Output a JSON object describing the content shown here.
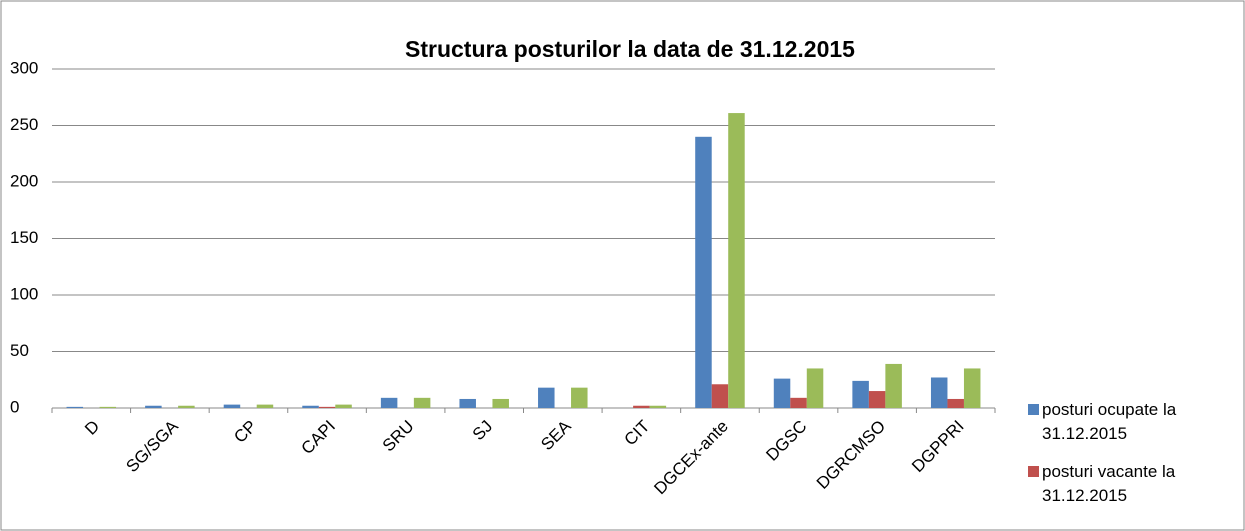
{
  "chart_data": {
    "type": "bar",
    "title": "Structura posturilor la data de 31.12.2015",
    "categories": [
      "D",
      "SG/SGA",
      "CP",
      "CAPI",
      "SRU",
      "SJ",
      "SEA",
      "CIT",
      "DGCEx-ante",
      "DGSC",
      "DGRCMSO",
      "DGPPRI"
    ],
    "series": [
      {
        "name": "posturi ocupate la 31.12.2015",
        "color": "#4f81bd",
        "values": [
          1,
          2,
          3,
          2,
          9,
          8,
          18,
          0,
          240,
          26,
          24,
          27
        ]
      },
      {
        "name": "posturi vacante la 31.12.2015",
        "color": "#c0504d",
        "values": [
          0,
          0,
          0,
          1,
          0,
          0,
          0,
          2,
          21,
          9,
          15,
          8
        ]
      },
      {
        "color": "#9bbb59",
        "values": [
          1,
          2,
          3,
          3,
          9,
          8,
          18,
          2,
          261,
          35,
          39,
          35
        ]
      }
    ],
    "ylim": [
      0,
      300
    ],
    "yticks": [
      0,
      50,
      100,
      150,
      200,
      250,
      300
    ],
    "grid": true,
    "legend": "right"
  }
}
